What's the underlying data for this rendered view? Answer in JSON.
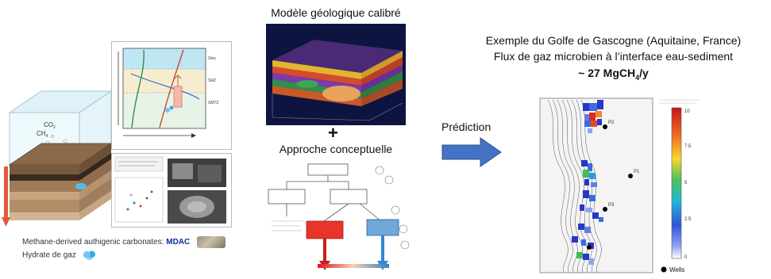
{
  "left": {
    "legend_mdac_prefix": "Methane-derived authigenic carbonates:",
    "legend_mdac_abbr": "MDAC",
    "legend_hydrate": "Hydrate de gaz",
    "labels": {
      "co2": "CO",
      "co2_sub": "2",
      "ch4": "CH",
      "ch4_sub": "4"
    }
  },
  "center": {
    "model_title": "Modèle géologique calibré",
    "plus": "+",
    "concept_title": "Approche conceptuelle"
  },
  "arrow": {
    "label": "Prédiction",
    "color": "#4472c4"
  },
  "right": {
    "title_line1": "Exemple du Golfe de Gascogne (Aquitaine, France)",
    "title_line2": "Flux de gaz microbien à l’interface eau-sediment",
    "title_line3_main": "~ 27 MgCH",
    "title_line3_sub": "4",
    "title_line3_end": "/y",
    "legend_wells": "Wells",
    "colorbar_ticks": [
      "10",
      "7.5",
      "5",
      "2.5",
      "0"
    ],
    "well_labels": [
      "P1",
      "P2",
      "P3"
    ]
  }
}
